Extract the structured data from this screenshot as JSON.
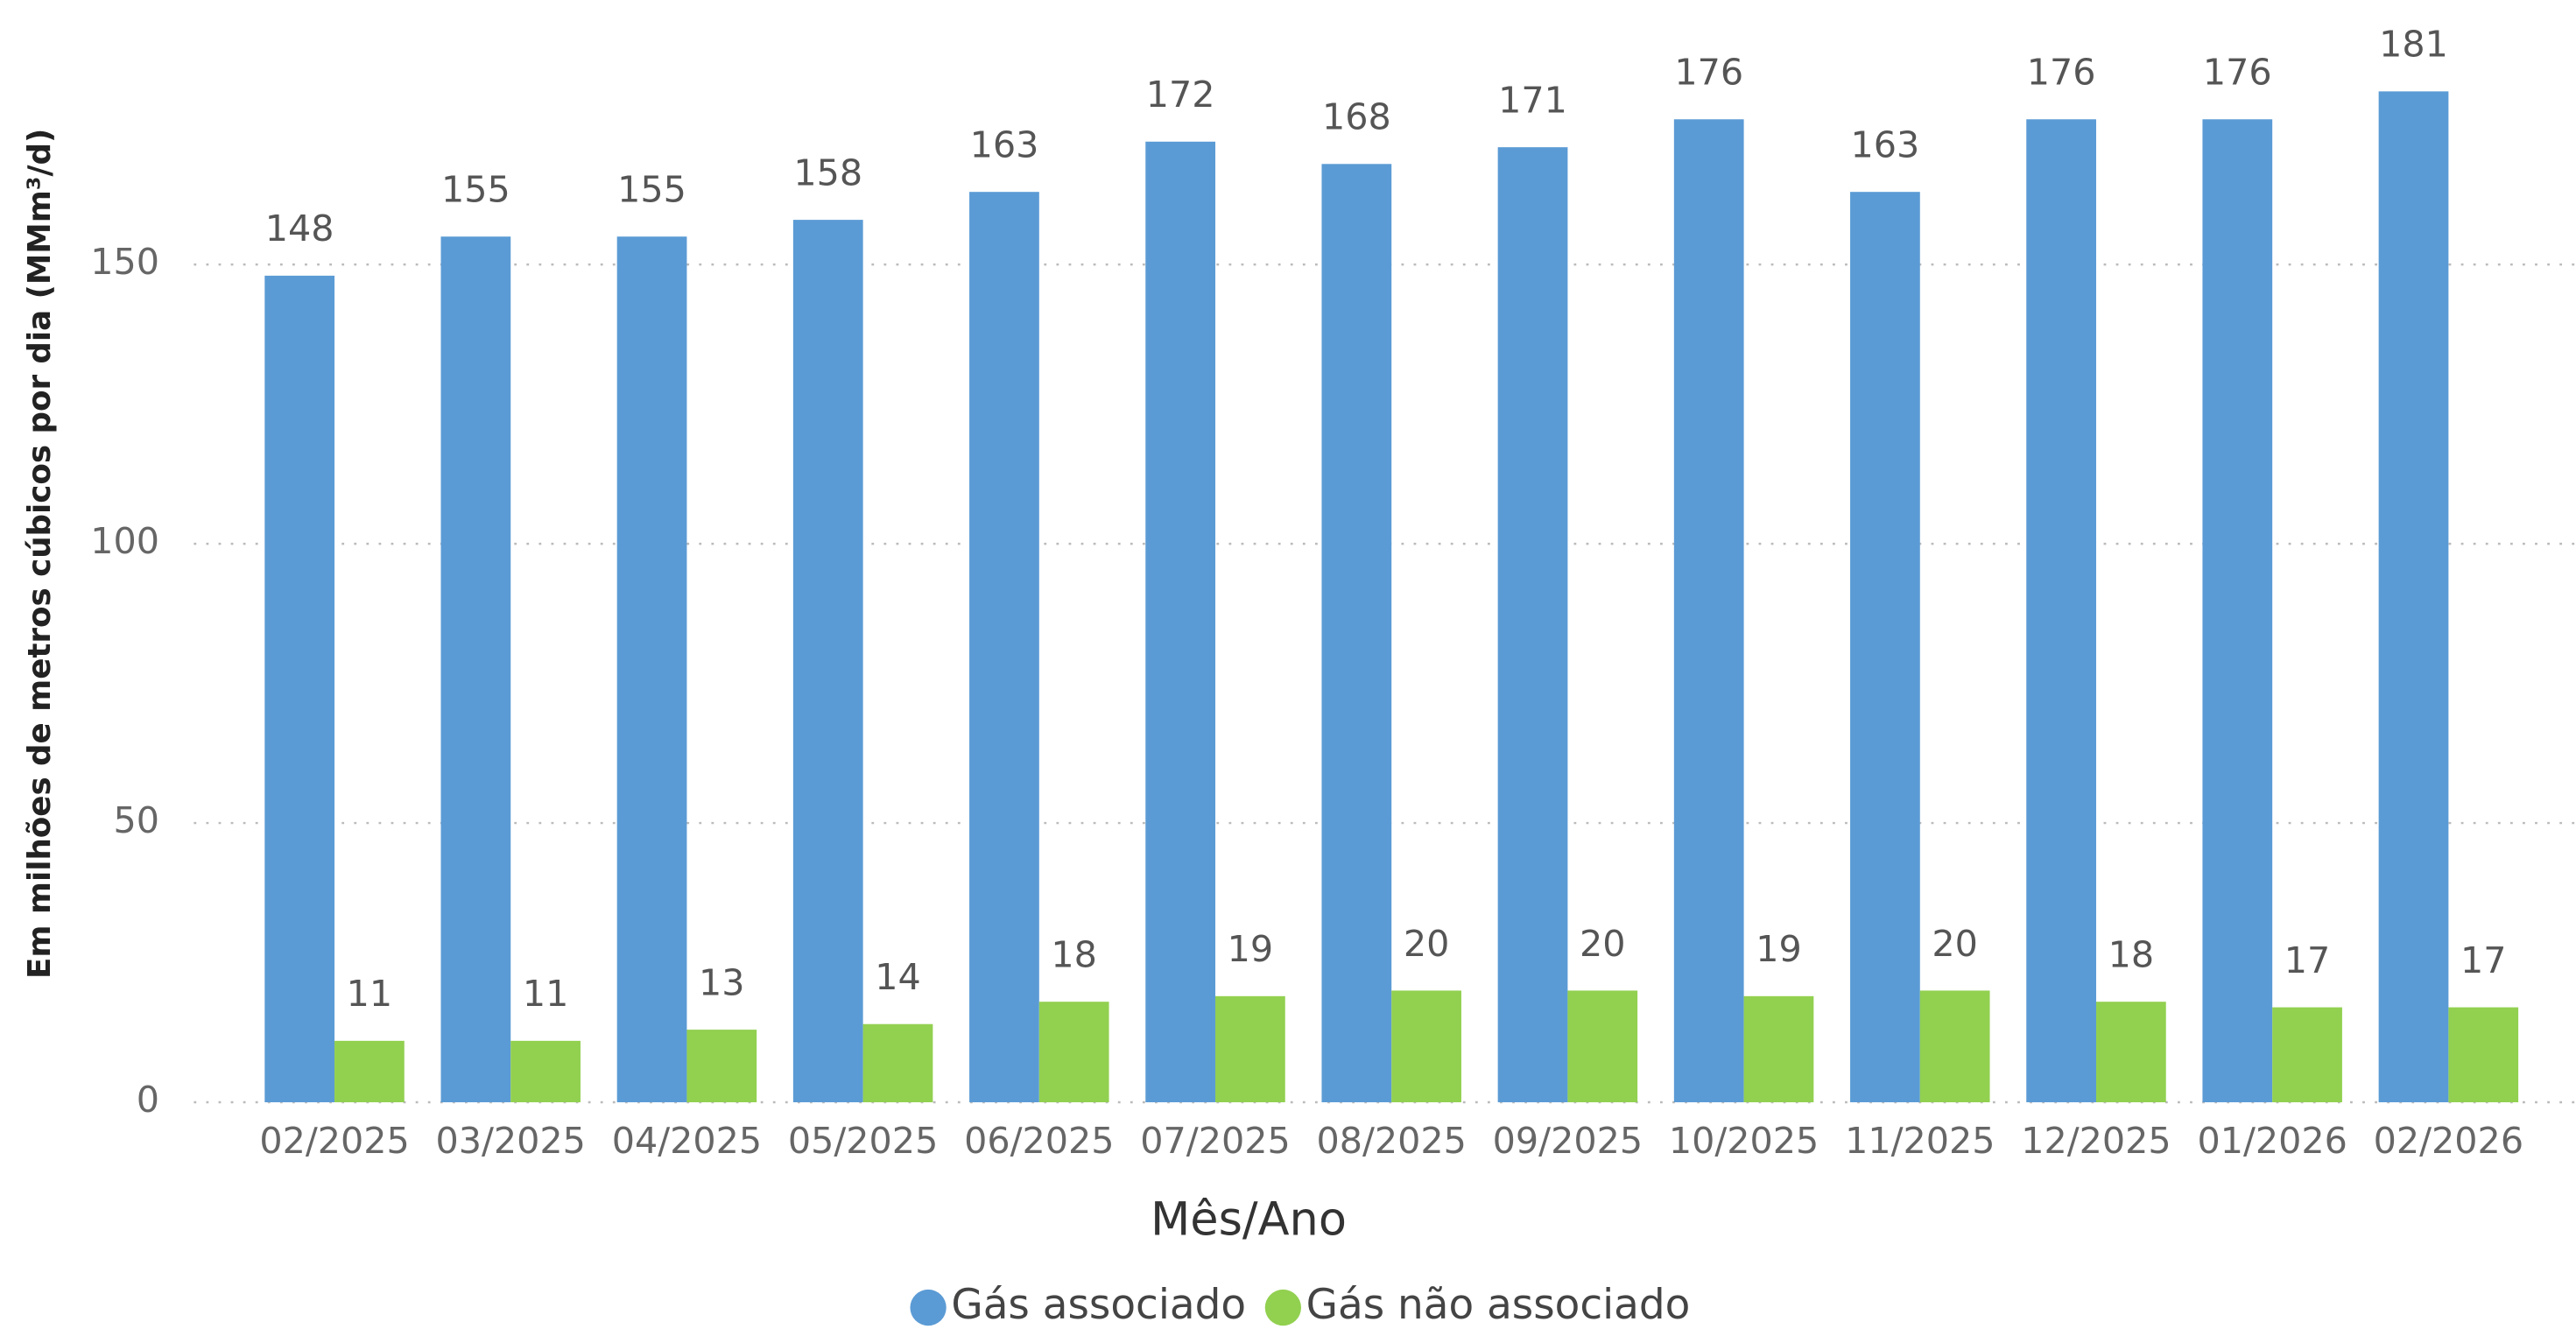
{
  "chart_data": {
    "type": "bar",
    "x_label": "Mês/Ano",
    "y_label": "Em milhões de metros cúbicos por dia (MMm³/d)",
    "categories": [
      "02/2025",
      "03/2025",
      "04/2025",
      "05/2025",
      "06/2025",
      "07/2025",
      "08/2025",
      "09/2025",
      "10/2025",
      "11/2025",
      "12/2025",
      "01/2026",
      "02/2026"
    ],
    "series": [
      {
        "name": "Gás associado",
        "color": "#5b9bd5",
        "values": [
          148,
          155,
          155,
          158,
          163,
          172,
          168,
          171,
          176,
          163,
          176,
          176,
          181
        ]
      },
      {
        "name": "Gás não associado",
        "color": "#92d050",
        "values": [
          11,
          11,
          13,
          14,
          18,
          19,
          20,
          20,
          19,
          20,
          18,
          17,
          17
        ]
      }
    ],
    "ylim": [
      0,
      190
    ],
    "yticks": [
      0,
      50,
      100,
      150
    ],
    "grid": true,
    "legend": "bottom"
  }
}
